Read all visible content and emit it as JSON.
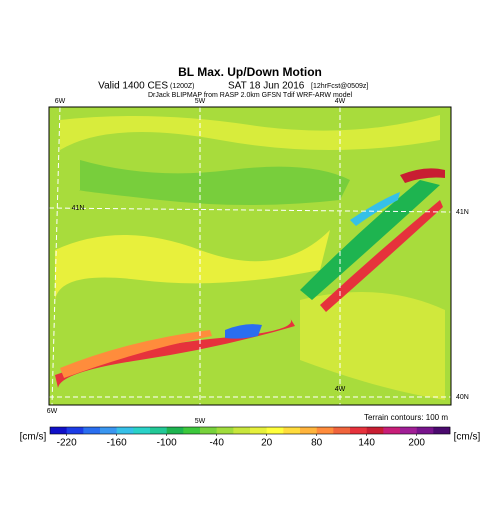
{
  "header": {
    "title": "BL Max. Up/Down Motion",
    "valid": "Valid 1400 CES",
    "utc": "(1200Z)",
    "date": "SAT 18 Jun 2016",
    "forecast": "[12hrFcst@0509z]",
    "source": "DrJack BLIPMAP from RASP 2.0km GFSN Tdif WRF-ARW model"
  },
  "map": {
    "lon_top": [
      "6W",
      "5W",
      "4W"
    ],
    "lon_bottom": [
      "6W",
      "5W",
      "4W"
    ],
    "lat_left": [
      "41N"
    ],
    "lat_right": [
      "41N",
      "40N"
    ],
    "terrain_note": "Terrain contours: 100 m"
  },
  "colorbar": {
    "unit_left": "[cm/s]",
    "unit_right": "[cm/s]",
    "range": [
      -240,
      240
    ],
    "ticks": [
      -220,
      -160,
      -100,
      -40,
      20,
      80,
      140,
      200
    ],
    "colors": [
      "#1010c8",
      "#1c3ce6",
      "#2a6ef0",
      "#3a96f0",
      "#36c0e8",
      "#2ad2c8",
      "#22c896",
      "#1eb450",
      "#3cc83c",
      "#78d23c",
      "#a0dc3c",
      "#c8e63c",
      "#e6f03c",
      "#ffff3c",
      "#ffdc3c",
      "#ffb43c",
      "#ff8c3c",
      "#f0643c",
      "#e6323c",
      "#c81e32",
      "#c81e78",
      "#a01e96",
      "#78148c",
      "#4b0a6e"
    ]
  }
}
